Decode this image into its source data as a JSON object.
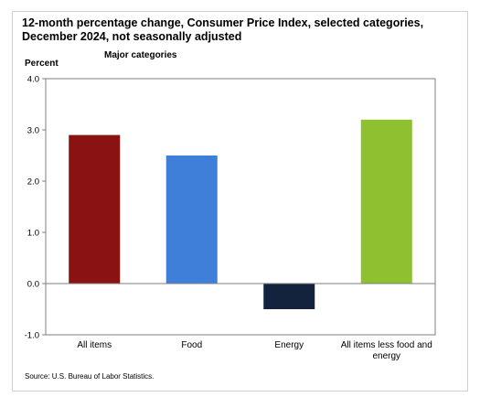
{
  "title": "12-month percentage change, Consumer Price Index, selected categories, December 2024, not seasonally adjusted",
  "subtitle": "Major categories",
  "source": "Source: U.S. Bureau of Labor Statistics.",
  "chart_data": {
    "type": "bar",
    "title": "12-month percentage change, Consumer Price Index, selected categories, December 2024, not seasonally adjusted",
    "subtitle": "Major categories",
    "ylabel": "Percent",
    "xlabel": "",
    "ylim": [
      -1.0,
      4.0
    ],
    "yticks": [
      "4.0",
      "3.0",
      "2.0",
      "1.0",
      "0.0",
      "-1.0"
    ],
    "ytick_values": [
      4.0,
      3.0,
      2.0,
      1.0,
      0.0,
      -1.0
    ],
    "grid": false,
    "categories": [
      "All items",
      "Food",
      "Energy",
      "All items less food and energy"
    ],
    "category_lines": [
      [
        "All items"
      ],
      [
        "Food"
      ],
      [
        "Energy"
      ],
      [
        "All items less food and",
        "energy"
      ]
    ],
    "values": [
      2.9,
      2.5,
      -0.5,
      3.2
    ],
    "colors": [
      "#8b1212",
      "#3f7fd9",
      "#13233e",
      "#8fc02f"
    ]
  }
}
